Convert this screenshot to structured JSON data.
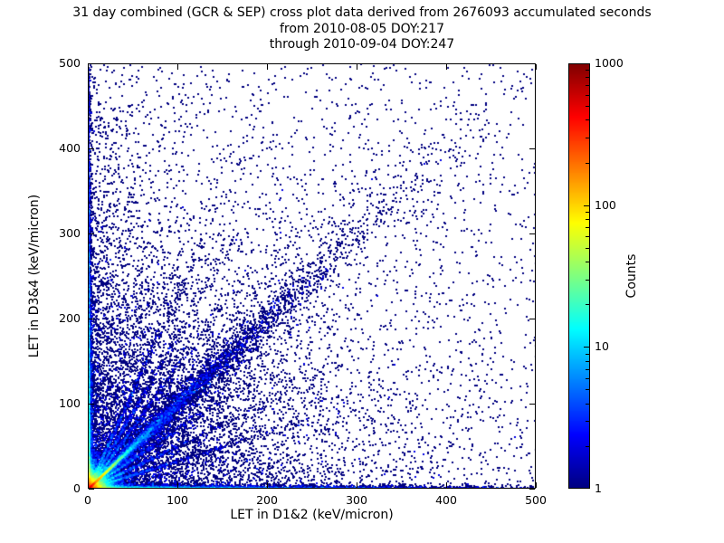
{
  "chart_data": {
    "type": "density-scatter",
    "title": "31 day combined (GCR & SEP) cross plot data derived from 2676093 accumulated seconds",
    "subtitle1": "from 2010-08-05 DOY:217",
    "subtitle2": "through 2010-09-04 DOY:247",
    "xlabel": "LET in D1&2 (keV/micron)",
    "ylabel": "LET in D3&4 (keV/micron)",
    "xlim": [
      0,
      500
    ],
    "ylim": [
      0,
      500
    ],
    "x_ticks": [
      0,
      100,
      200,
      300,
      400,
      500
    ],
    "y_ticks": [
      0,
      100,
      200,
      300,
      400,
      500
    ],
    "grid": false,
    "colorbar": {
      "label": "Counts",
      "scale": "log",
      "min": 1,
      "max": 1000,
      "ticks": [
        1,
        10,
        100,
        1000
      ],
      "colormap": "jet"
    },
    "seed": 1337,
    "components": [
      {
        "name": "origin-core",
        "dist": "exp2",
        "samples": 22000,
        "sx": 7,
        "sy": 7
      },
      {
        "name": "hot-diagonal",
        "dist": "ray",
        "samples": 6000,
        "scale": 15,
        "slope": 1.0,
        "spread": 0.02,
        "jitter": 0.4
      },
      {
        "name": "main-diagonal",
        "dist": "ray",
        "samples": 4500,
        "scale": 90,
        "slope": 1.0,
        "spread": 0.06,
        "jitter": 2
      },
      {
        "name": "diagonal-halo",
        "dist": "ray",
        "samples": 2500,
        "scale": 100,
        "slope": 1.0,
        "spread": 0.18,
        "jitter": 4
      },
      {
        "name": "x-axis-band",
        "dist": "exp2",
        "samples": 8000,
        "sx": 140,
        "sy": 1.2
      },
      {
        "name": "y-axis-band",
        "dist": "exp2",
        "samples": 6000,
        "sx": 1.2,
        "sy": 130
      },
      {
        "name": "ray-a",
        "dist": "ray",
        "samples": 900,
        "scale": 35,
        "slope": 2.3,
        "spread": 0.03,
        "jitter": 0.8
      },
      {
        "name": "ray-b",
        "dist": "ray",
        "samples": 900,
        "scale": 38,
        "slope": 1.8,
        "spread": 0.03,
        "jitter": 0.8
      },
      {
        "name": "ray-c",
        "dist": "ray",
        "samples": 900,
        "scale": 40,
        "slope": 1.45,
        "spread": 0.03,
        "jitter": 0.8
      },
      {
        "name": "ray-d",
        "dist": "ray",
        "samples": 900,
        "scale": 45,
        "slope": 0.7,
        "spread": 0.03,
        "jitter": 0.8
      },
      {
        "name": "ray-e",
        "dist": "ray",
        "samples": 900,
        "scale": 50,
        "slope": 0.5,
        "spread": 0.03,
        "jitter": 0.8
      },
      {
        "name": "ray-f",
        "dist": "ray",
        "samples": 900,
        "scale": 55,
        "slope": 0.33,
        "spread": 0.03,
        "jitter": 0.8
      },
      {
        "name": "background",
        "dist": "exp2",
        "samples": 7000,
        "sx": 120,
        "sy": 120
      },
      {
        "name": "upper-left-spray",
        "dist": "exp2",
        "samples": 1200,
        "sx": 35,
        "sy": 200
      },
      {
        "name": "uniform-sparse",
        "dist": "uniform",
        "samples": 1600
      }
    ]
  }
}
